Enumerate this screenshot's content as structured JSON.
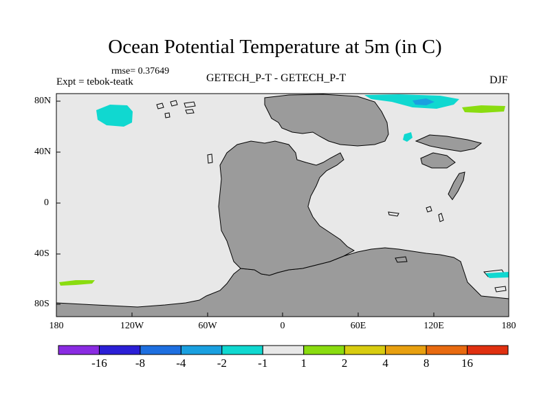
{
  "title": "Ocean Potential Temperature at 5m (in C)",
  "rmse_label": "rmse= 0.37649",
  "expt_label": "Expt = tebok-teatk",
  "center_label": "GETECH_P-T - GETECH_P-T",
  "season_label": "DJF",
  "map": {
    "ocean_color": "#e8e8e8",
    "land_color": "#9b9b9b",
    "x_ticks": [
      "180",
      "120W",
      "60W",
      "0",
      "60E",
      "120E",
      "180"
    ],
    "y_ticks": [
      "80N",
      "40N",
      "0",
      "40S",
      "80S"
    ]
  },
  "colorbar": {
    "colors": [
      "#8a2be2",
      "#2b1fd6",
      "#1e6fe0",
      "#1aa0e0",
      "#10d8d0",
      "#e8e8e8",
      "#8adc10",
      "#d8cc10",
      "#e8a010",
      "#e86a10",
      "#e03010"
    ],
    "labels": [
      "-16",
      "-8",
      "-4",
      "-2",
      "-1",
      "1",
      "2",
      "4",
      "8",
      "16"
    ]
  }
}
